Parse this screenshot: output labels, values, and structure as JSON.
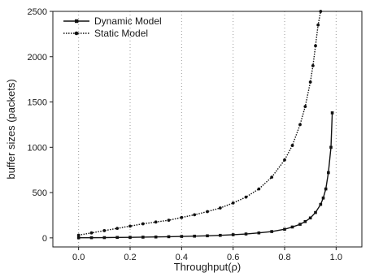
{
  "chart_data": {
    "type": "line",
    "title": "",
    "xlabel": "Throughput(ρ)",
    "ylabel": "buffer sizes (packets)",
    "xlim": [
      -0.1,
      1.1
    ],
    "ylim": [
      -100,
      2500
    ],
    "x_ticks": [
      "0.0",
      "0.2",
      "0.4",
      "0.6",
      "0.8",
      "1.0"
    ],
    "y_ticks": [
      "0",
      "500",
      "1000",
      "1500",
      "2000",
      "2500"
    ],
    "grid": "vertical dotted lines at x ticks",
    "legend_position": "top-left",
    "series": [
      {
        "name": "Dynamic Model",
        "marker": "square",
        "line_style": "solid",
        "x": [
          0.0,
          0.05,
          0.1,
          0.15,
          0.2,
          0.25,
          0.3,
          0.35,
          0.4,
          0.45,
          0.5,
          0.55,
          0.6,
          0.65,
          0.7,
          0.75,
          0.8,
          0.83,
          0.86,
          0.88,
          0.9,
          0.92,
          0.94,
          0.95,
          0.96,
          0.97,
          0.98,
          0.985
        ],
        "y": [
          1,
          2,
          3,
          5,
          6,
          8,
          10,
          13,
          16,
          19,
          23,
          28,
          35,
          43,
          55,
          70,
          95,
          120,
          150,
          180,
          220,
          280,
          370,
          440,
          540,
          720,
          1000,
          1380
        ]
      },
      {
        "name": "Static Model",
        "marker": "circle",
        "line_style": "dotted",
        "x": [
          0.0,
          0.05,
          0.1,
          0.15,
          0.2,
          0.25,
          0.3,
          0.35,
          0.4,
          0.45,
          0.5,
          0.55,
          0.6,
          0.65,
          0.7,
          0.75,
          0.8,
          0.83,
          0.86,
          0.88,
          0.9,
          0.91,
          0.92,
          0.93,
          0.94
        ],
        "y": [
          30,
          55,
          80,
          105,
          130,
          155,
          175,
          195,
          225,
          255,
          290,
          330,
          385,
          450,
          540,
          670,
          860,
          1020,
          1250,
          1450,
          1720,
          1900,
          2120,
          2350,
          2500
        ]
      }
    ]
  }
}
